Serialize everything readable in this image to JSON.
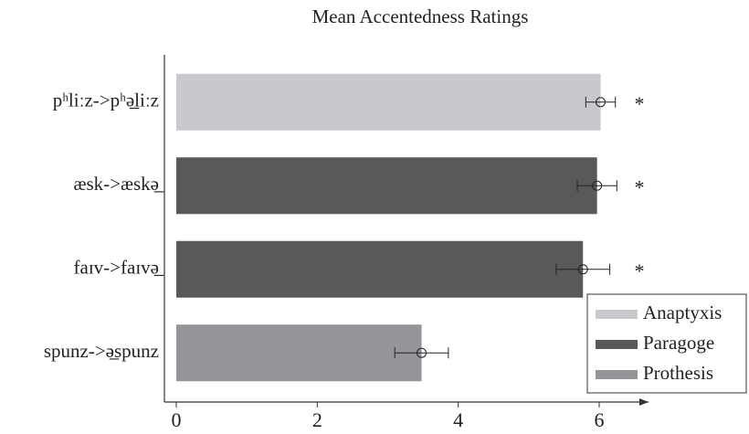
{
  "chart_data": {
    "type": "bar",
    "orientation": "horizontal",
    "title": "Mean Accentedness Ratings",
    "categories": [
      "pʰliːz->pʰə̲liːz",
      "æsk->æskə̲",
      "faɪv->faɪvə̲",
      "spunz->ə̲spunz"
    ],
    "series": [
      {
        "name": "Anaptyxis",
        "color": "#c8c9cc",
        "values": [
          6.02,
          null,
          null,
          null
        ],
        "errors": [
          0.21,
          null,
          null,
          null
        ]
      },
      {
        "name": "Paragoge",
        "color": "#58595b",
        "values": [
          null,
          5.97,
          5.77,
          null
        ],
        "errors": [
          null,
          0.28,
          0.38,
          null
        ]
      },
      {
        "name": "Prothesis",
        "color": "#939598",
        "values": [
          null,
          null,
          null,
          3.48
        ],
        "errors": [
          null,
          null,
          null,
          0.38
        ]
      }
    ],
    "annotations": [
      "*",
      "*",
      "*",
      null
    ],
    "xlim": [
      0,
      6.7
    ],
    "xticks": [
      0,
      2,
      4,
      6
    ],
    "legend": "lower right"
  }
}
